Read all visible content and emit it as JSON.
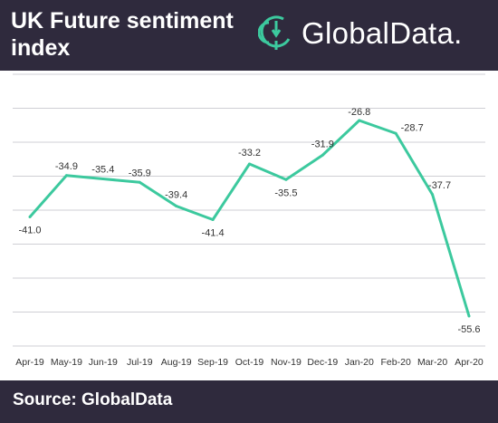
{
  "header": {
    "title": "UK Future sentiment index",
    "brand": "GlobalData.",
    "brand_logo_icon": "globaldata-logo-icon"
  },
  "footer": {
    "source": "Source: GlobalData"
  },
  "colors": {
    "header_bg": "#2f2a3d",
    "line": "#3cc99e",
    "grid": "#cfcfd4"
  },
  "chart_data": {
    "type": "line",
    "categories": [
      "Apr-19",
      "May-19",
      "Jun-19",
      "Jul-19",
      "Aug-19",
      "Sep-19",
      "Oct-19",
      "Nov-19",
      "Dec-19",
      "Jan-20",
      "Feb-20",
      "Mar-20",
      "Apr-20"
    ],
    "values": [
      -41.0,
      -34.9,
      -35.4,
      -35.9,
      -39.4,
      -41.4,
      -33.2,
      -35.5,
      -31.9,
      -26.8,
      -28.7,
      -37.7,
      -55.6
    ],
    "labels": [
      "-41.0",
      "-34.9",
      "-35.4",
      "-35.9",
      "-39.4",
      "-41.4",
      "-33.2",
      "-35.5",
      "-31.9",
      "-26.8",
      "-28.7",
      "-37.7",
      "-55.6"
    ],
    "ylim": [
      -60,
      -20
    ],
    "grid": true,
    "legend": "none",
    "title": "UK Future sentiment index",
    "xlabel": "",
    "ylabel": ""
  }
}
